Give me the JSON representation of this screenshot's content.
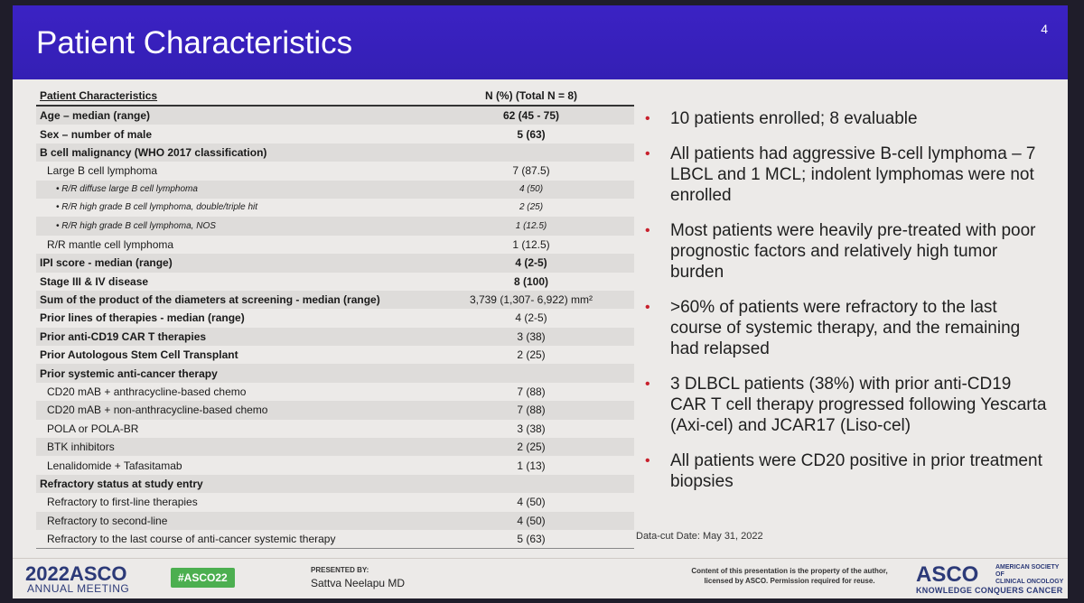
{
  "header": {
    "title": "Patient Characteristics",
    "page_number": "4"
  },
  "table": {
    "col_label": "Patient Characteristics",
    "col_value": "N (%) (Total N = 8)",
    "rows": [
      {
        "label": "Age – median (range)",
        "value": "62 (45 - 75)"
      },
      {
        "label": "Sex – number of male",
        "value": "5 (63)"
      },
      {
        "label": "B cell malignancy (WHO 2017 classification)",
        "value": ""
      },
      {
        "label": "Large B cell lymphoma",
        "value": "7 (87.5)"
      },
      {
        "label": "• R/R diffuse large B cell lymphoma",
        "value": "4 (50)"
      },
      {
        "label": "• R/R high grade B cell lymphoma, double/triple hit",
        "value": "2 (25)"
      },
      {
        "label": "• R/R high grade B cell lymphoma, NOS",
        "value": "1 (12.5)"
      },
      {
        "label": "R/R mantle cell lymphoma",
        "value": "1 (12.5)"
      },
      {
        "label": "IPI score - median (range)",
        "value": "4 (2-5)"
      },
      {
        "label": "Stage III & IV disease",
        "value": "8 (100)"
      },
      {
        "label": "Sum of the product of the diameters at screening - median (range)",
        "value": "3,739  (1,307- 6,922) mm²"
      },
      {
        "label": "Prior lines of therapies - median (range)",
        "value": "4 (2-5)"
      },
      {
        "label": "Prior anti-CD19 CAR T therapies",
        "value": "3 (38)"
      },
      {
        "label": "Prior Autologous Stem Cell Transplant",
        "value": "2 (25)"
      },
      {
        "label": "Prior systemic anti-cancer therapy",
        "value": ""
      },
      {
        "label": "CD20 mAB + anthracycline-based chemo",
        "value": "7 (88)"
      },
      {
        "label": "CD20 mAB + non-anthracycline-based chemo",
        "value": "7 (88)"
      },
      {
        "label": "POLA or POLA-BR",
        "value": "3 (38)"
      },
      {
        "label": "BTK inhibitors",
        "value": "2 (25)"
      },
      {
        "label": "Lenalidomide + Tafasitamab",
        "value": "1 (13)"
      },
      {
        "label": "Refractory status at study entry",
        "value": ""
      },
      {
        "label": "Refractory to first-line therapies",
        "value": "4 (50)"
      },
      {
        "label": "Refractory to second-line",
        "value": "4 (50)"
      },
      {
        "label": "Refractory to the last course of anti-cancer systemic therapy",
        "value": "5 (63)"
      }
    ]
  },
  "bullets": [
    "10 patients enrolled; 8 evaluable",
    "All patients had aggressive B-cell lymphoma – 7 LBCL and 1 MCL; indolent lymphomas were not enrolled",
    "Most patients were heavily pre-treated with poor prognostic factors and relatively high tumor burden",
    ">60% of patients were refractory to the last course of systemic therapy, and the remaining had relapsed",
    "3 DLBCL patients (38%) with prior anti-CD19 CAR T cell therapy progressed following Yescarta (Axi-cel) and JCAR17 (Liso-cel)",
    "All patients were CD20 positive in prior treatment biopsies"
  ],
  "data_cut": "Data-cut Date:  May 31, 2022",
  "footer": {
    "year": "2022",
    "asco": "ASCO",
    "annual_meeting": "ANNUAL MEETING",
    "hashtag": "#ASCO22",
    "presented_by": "PRESENTED BY:",
    "presenter": "Sattva Neelapu MD",
    "copyright": "Content of this presentation is the property of the author, licensed by ASCO. Permission required for reuse.",
    "logo": "ASCO",
    "society_line1": "AMERICAN SOCIETY OF",
    "society_line2": "CLINICAL ONCOLOGY",
    "tagline": "KNOWLEDGE CONQUERS CANCER"
  },
  "colors": {
    "header": "#3b22c4",
    "bullet": "#c8202c",
    "hashtag_bg": "#4caf50",
    "brand": "#2c3a78"
  }
}
